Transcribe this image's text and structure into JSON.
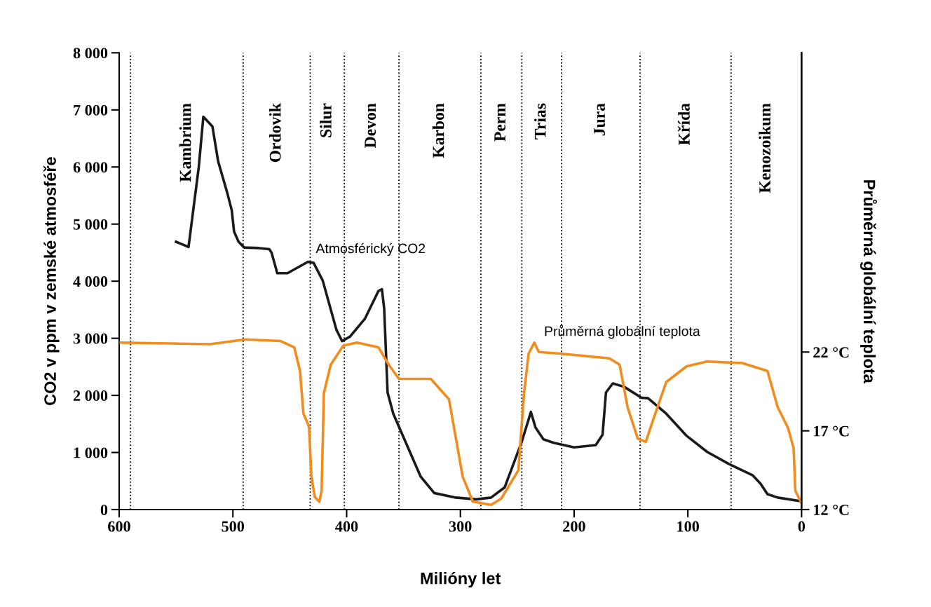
{
  "chart_data": {
    "type": "line",
    "xlabel": "Milióny let",
    "ylabel": "CO2 v ppm v zemské atmosféře",
    "y2label": "Průměrná globální teplota",
    "xlim": [
      600,
      0
    ],
    "xticks": [
      600,
      500,
      400,
      300,
      200,
      100,
      0
    ],
    "ylim": [
      0,
      8000
    ],
    "yticks": [
      {
        "value": 0,
        "label": "0"
      },
      {
        "value": 1000,
        "label": "1 000"
      },
      {
        "value": 2000,
        "label": "2 000"
      },
      {
        "value": 3000,
        "label": "3 000"
      },
      {
        "value": 4000,
        "label": "4 000"
      },
      {
        "value": 5000,
        "label": "5 000"
      },
      {
        "value": 6000,
        "label": "6 000"
      },
      {
        "value": 7000,
        "label": "7 000"
      },
      {
        "value": 8000,
        "label": "8 000"
      }
    ],
    "y2lim": [
      12,
      41
    ],
    "y2ticks": [
      {
        "value": 12,
        "label": "12 °C"
      },
      {
        "value": 17,
        "label": "17 °C"
      },
      {
        "value": 22,
        "label": "22 °C"
      }
    ],
    "grid": false,
    "legend": false,
    "marker": "none",
    "line_style": "solid",
    "series": [
      {
        "name": "Atmosférický CO2",
        "color": "#1a1a1a",
        "x": [
          550,
          539,
          530,
          526,
          518,
          513,
          505,
          501,
          499,
          495,
          490,
          477,
          468,
          466,
          461,
          452,
          434,
          429,
          421,
          409,
          404,
          397,
          384,
          372,
          369,
          367,
          364,
          359,
          347,
          335,
          323,
          304,
          286,
          273,
          261,
          246,
          238,
          234,
          227,
          218,
          200,
          181,
          175,
          172,
          166,
          156,
          141,
          135,
          119,
          101,
          83,
          64,
          43,
          36,
          30,
          21,
          2
        ],
        "values": [
          4690,
          4600,
          6000,
          6880,
          6710,
          6100,
          5550,
          5240,
          4870,
          4690,
          4590,
          4580,
          4560,
          4500,
          4140,
          4140,
          4340,
          4320,
          4010,
          3150,
          2950,
          3030,
          3340,
          3830,
          3860,
          3520,
          2050,
          1680,
          1130,
          580,
          290,
          210,
          180,
          210,
          390,
          1190,
          1710,
          1440,
          1230,
          1170,
          1090,
          1130,
          1310,
          2050,
          2210,
          2150,
          1960,
          1950,
          1680,
          1290,
          1010,
          800,
          600,
          450,
          270,
          210,
          150
        ]
      },
      {
        "name": "Průměrná globální teplota",
        "color": "#f28c1c",
        "axis": "y2",
        "x": [
          600,
          520,
          489,
          458,
          446,
          441,
          438,
          435,
          433,
          431,
          428,
          424,
          422,
          420,
          414,
          403,
          391,
          372,
          363,
          354,
          326,
          310,
          298,
          289,
          273,
          264,
          249,
          244,
          240,
          235,
          231,
          212,
          169,
          160,
          153,
          144,
          137,
          131,
          119,
          101,
          83,
          52,
          30,
          21,
          12,
          7,
          5.5,
          0
        ],
        "values": [
          22.6,
          22.5,
          22.8,
          22.7,
          22.3,
          20.8,
          18.1,
          17.6,
          17.2,
          14.1,
          12.8,
          12.5,
          13.2,
          19.4,
          21.2,
          22.4,
          22.6,
          22.3,
          21.2,
          20.3,
          20.3,
          19.0,
          14.1,
          12.5,
          12.3,
          12.7,
          14.5,
          19.4,
          21.9,
          22.6,
          22.0,
          21.9,
          21.6,
          21.2,
          18.5,
          16.5,
          16.3,
          17.6,
          20.1,
          21.1,
          21.4,
          21.3,
          20.8,
          18.5,
          17.2,
          15.9,
          13.2,
          12.4
        ]
      }
    ],
    "ref_lines": [
      {
        "axis": "x",
        "value": 590,
        "line_style": "dotted"
      },
      {
        "axis": "x",
        "value": 491,
        "line_style": "dotted"
      },
      {
        "axis": "x",
        "value": 432,
        "line_style": "dotted"
      },
      {
        "axis": "x",
        "value": 402,
        "line_style": "dotted"
      },
      {
        "axis": "x",
        "value": 354,
        "line_style": "dotted"
      },
      {
        "axis": "x",
        "value": 282,
        "line_style": "dotted"
      },
      {
        "axis": "x",
        "value": 246,
        "line_style": "dotted"
      },
      {
        "axis": "x",
        "value": 211,
        "line_style": "dotted"
      },
      {
        "axis": "x",
        "value": 142,
        "line_style": "dotted"
      },
      {
        "axis": "x",
        "value": 62,
        "line_style": "dotted"
      }
    ],
    "annotations": [
      "Kambrium",
      "Ordovik",
      "Silur",
      "Devon",
      "Karbon",
      "Perm",
      "Trias",
      "Jura",
      "Křída",
      "Kenozoikum"
    ]
  }
}
